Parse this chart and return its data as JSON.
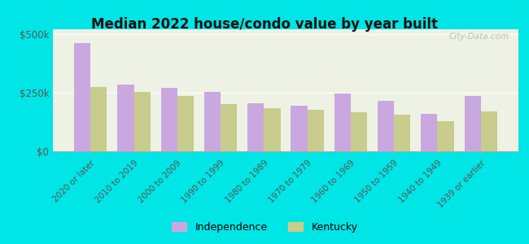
{
  "title": "Median 2022 house/condo value by year built",
  "categories": [
    "2020 or later",
    "2010 to 2019",
    "2000 to 2009",
    "1990 to 1999",
    "1980 to 1989",
    "1970 to 1979",
    "1960 to 1969",
    "1950 to 1959",
    "1940 to 1949",
    "1939 or earlier"
  ],
  "independence_values": [
    460000,
    285000,
    270000,
    252000,
    205000,
    195000,
    245000,
    215000,
    160000,
    235000
  ],
  "kentucky_values": [
    275000,
    252000,
    235000,
    200000,
    185000,
    178000,
    168000,
    155000,
    130000,
    170000
  ],
  "independence_color": "#c9a8e0",
  "kentucky_color": "#c8cc8c",
  "background_color": "#00e5e5",
  "plot_bg_color": "#eef2e4",
  "ylim": [
    0,
    520000
  ],
  "yticks": [
    0,
    250000,
    500000
  ],
  "ytick_labels": [
    "$0",
    "$250k",
    "$500k"
  ],
  "watermark": "City-Data.com",
  "legend_labels": [
    "Independence",
    "Kentucky"
  ],
  "bar_width": 0.38
}
